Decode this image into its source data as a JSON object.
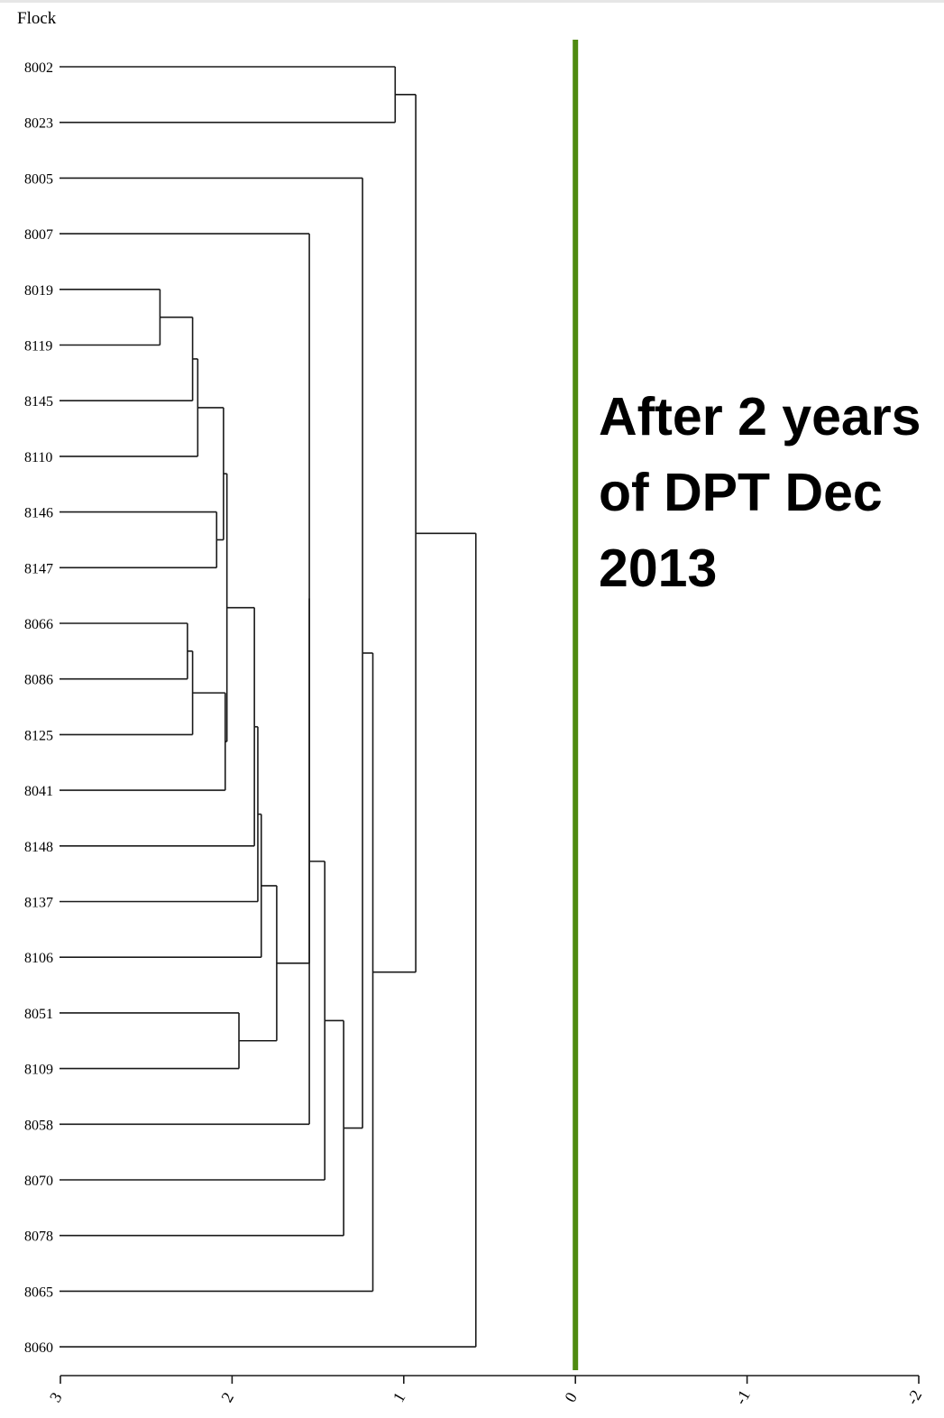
{
  "chart_data": {
    "type": "dendrogram",
    "orientation": "horizontal",
    "leaf_header": "Flock",
    "x_axis": {
      "min": -2,
      "max": 3,
      "reversed": true,
      "ticks": [
        3,
        2,
        1,
        0,
        -1,
        -2
      ],
      "tick_labels": [
        "3",
        "2",
        "1",
        "0",
        "-1",
        "-2"
      ]
    },
    "leaves": [
      "8002",
      "8023",
      "8005",
      "8007",
      "8019",
      "8119",
      "8145",
      "8110",
      "8146",
      "8147",
      "8066",
      "8086",
      "8125",
      "8041",
      "8148",
      "8137",
      "8106",
      "8051",
      "8109",
      "8058",
      "8070",
      "8078",
      "8065",
      "8060"
    ],
    "merges": [
      {
        "a": "8002",
        "b": "8023",
        "height": 1.05
      },
      {
        "a": "8019",
        "b": "8119",
        "height": 2.42
      },
      {
        "a": "m1",
        "b": "8145",
        "height": 2.23
      },
      {
        "a": "m2",
        "b": "8110",
        "height": 2.2
      },
      {
        "a": "8146",
        "b": "8147",
        "height": 2.09
      },
      {
        "a": "m3",
        "b": "m4",
        "height": 2.05
      },
      {
        "a": "8066",
        "b": "8086",
        "height": 2.26
      },
      {
        "a": "m6",
        "b": "8125",
        "height": 2.23
      },
      {
        "a": "m7",
        "b": "8041",
        "height": 2.04
      },
      {
        "a": "m5",
        "b": "m8",
        "height": 2.03
      },
      {
        "a": "m9",
        "b": "8148",
        "height": 1.87
      },
      {
        "a": "m10",
        "b": "8137",
        "height": 1.85
      },
      {
        "a": "m11",
        "b": "8106",
        "height": 1.83
      },
      {
        "a": "8051",
        "b": "8109",
        "height": 1.96
      },
      {
        "a": "m12",
        "b": "m13",
        "height": 1.74
      },
      {
        "a": "8007",
        "b": "m14",
        "height": 1.55
      },
      {
        "a": "m15",
        "b": "8058",
        "height": 1.55
      },
      {
        "a": "m16",
        "b": "8070",
        "height": 1.46
      },
      {
        "a": "m17",
        "b": "8078",
        "height": 1.35
      },
      {
        "a": "8005",
        "b": "m18",
        "height": 1.24
      },
      {
        "a": "m19",
        "b": "8065",
        "height": 1.18
      },
      {
        "a": "m0",
        "b": "m20",
        "height": 0.93
      },
      {
        "a": "m21",
        "b": "8060",
        "height": 0.58
      }
    ],
    "cut_line": {
      "x": 0,
      "color": "#4f8a10"
    },
    "annotation": {
      "lines": [
        "After 2 years",
        "of DPT Dec",
        "2013"
      ]
    }
  }
}
